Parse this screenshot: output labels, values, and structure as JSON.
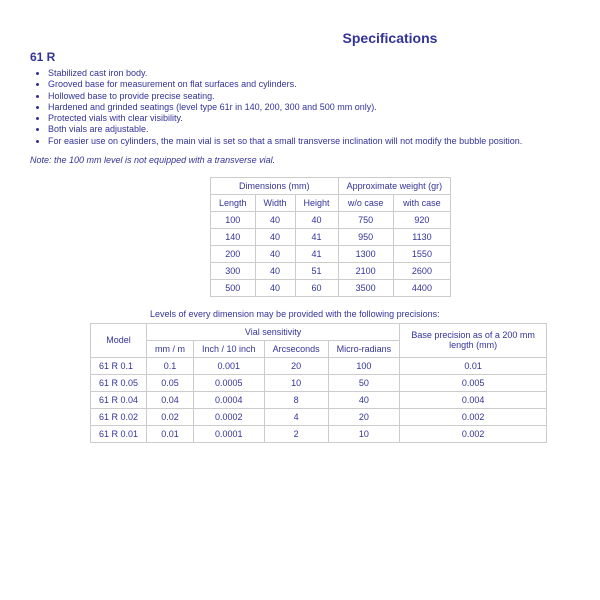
{
  "page_title": "Specifications",
  "model_heading": "61 R",
  "features": [
    "Stabilized cast iron body.",
    "Grooved base for measurement on flat surfaces and cylinders.",
    "Hollowed base to provide precise seating.",
    "Hardened and grinded seatings (level type 61r in 140, 200, 300 and 500 mm only).",
    "Protected vials with clear visibility.",
    "Both vials are adjustable.",
    "For easier use on cylinders, the main vial is set so that a small transverse inclination will not modify the bubble position."
  ],
  "note": "Note: the 100 mm level is not equipped with a transverse vial.",
  "dim_table": {
    "group_headers": [
      "Dimensions (mm)",
      "Approximate weight (gr)"
    ],
    "sub_headers": [
      "Length",
      "Width",
      "Height",
      "w/o case",
      "with case"
    ],
    "rows": [
      [
        "100",
        "40",
        "40",
        "750",
        "920"
      ],
      [
        "140",
        "40",
        "41",
        "950",
        "1130"
      ],
      [
        "200",
        "40",
        "41",
        "1300",
        "1550"
      ],
      [
        "300",
        "40",
        "51",
        "2100",
        "2600"
      ],
      [
        "500",
        "40",
        "60",
        "3500",
        "4400"
      ]
    ]
  },
  "precision_caption": "Levels of every dimension may be provided with the following precisions:",
  "precision_table": {
    "model_header": "Model",
    "sensitivity_header": "Vial sensitivity",
    "base_header": "Base precision as of a 200 mm length (mm)",
    "sub_headers": [
      "mm / m",
      "Inch / 10 inch",
      "Arcseconds",
      "Micro-radians"
    ],
    "rows": [
      [
        "61 R 0.1",
        "0.1",
        "0.001",
        "20",
        "100",
        "0.01"
      ],
      [
        "61 R 0.05",
        "0.05",
        "0.0005",
        "10",
        "50",
        "0.005"
      ],
      [
        "61 R 0.04",
        "0.04",
        "0.0004",
        "8",
        "40",
        "0.004"
      ],
      [
        "61 R 0.02",
        "0.02",
        "0.0002",
        "4",
        "20",
        "0.002"
      ],
      [
        "61 R 0.01",
        "0.01",
        "0.0001",
        "2",
        "10",
        "0.002"
      ]
    ]
  }
}
